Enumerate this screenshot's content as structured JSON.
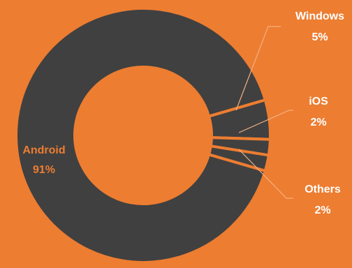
{
  "chart_data": {
    "type": "pie",
    "style": "donut",
    "slices": [
      {
        "label": "Android",
        "value": 91,
        "value_label": "91%",
        "color": "#404040"
      },
      {
        "label": "Windows",
        "value": 5,
        "value_label": "5%",
        "color": "#404040"
      },
      {
        "label": "iOS",
        "value": 2,
        "value_label": "2%",
        "color": "#404040"
      },
      {
        "label": "Others",
        "value": 2,
        "value_label": "2%",
        "color": "#404040"
      }
    ],
    "title": "",
    "legend": "none"
  },
  "colors": {
    "background": "#ED7D31",
    "slice_fill": "#404040",
    "slice_border": "#ED7D31",
    "label_text": "#FFFFFF",
    "inner_label_text": "#ED7D31",
    "leader_line": "#F4B183"
  }
}
